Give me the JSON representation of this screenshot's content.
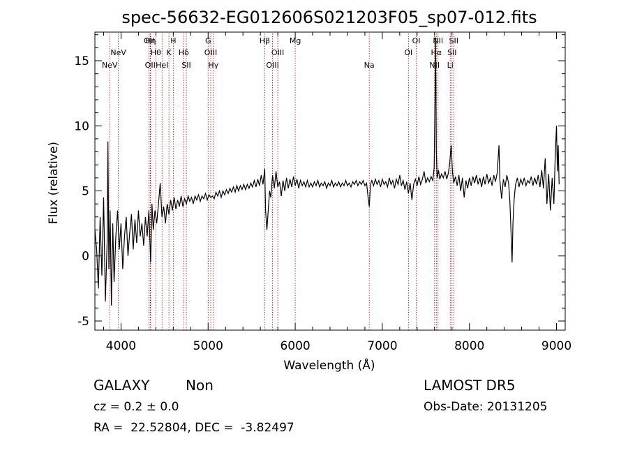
{
  "chart_data": {
    "type": "line",
    "title": "spec-56632-EG012606S021203F05_sp07-012.fits",
    "xlabel": "Wavelength (Å)",
    "ylabel": "Flux (relative)",
    "xlim": [
      3700,
      9100
    ],
    "ylim": [
      -5.7,
      17.2
    ],
    "x_ticks": [
      4000,
      5000,
      6000,
      7000,
      8000,
      9000
    ],
    "y_ticks": [
      -5,
      0,
      5,
      10,
      15
    ],
    "grid": false,
    "legend": "none",
    "line_color": "#000000",
    "marker_color": "#cc0000",
    "lines": [
      {
        "label": "NeV",
        "x": 3870,
        "row": 3
      },
      {
        "label": "NeV",
        "x": 3970,
        "row": 2
      },
      {
        "label": "OII",
        "x": 4322,
        "row": 1
      },
      {
        "label": "Hη",
        "x": 4340,
        "row": 1
      },
      {
        "label": "OII",
        "x": 4335,
        "row": 3
      },
      {
        "label": "Hθ",
        "x": 4400,
        "row": 2
      },
      {
        "label": "HeI",
        "x": 4471,
        "row": 3
      },
      {
        "label": "K",
        "x": 4550,
        "row": 2
      },
      {
        "label": "H",
        "x": 4600,
        "row": 1
      },
      {
        "label": "Hδ",
        "x": 4720,
        "row": 2
      },
      {
        "label": "SII",
        "x": 4750,
        "row": 3
      },
      {
        "label": "G",
        "x": 5000,
        "row": 1
      },
      {
        "label": "OIII",
        "x": 5030,
        "row": 2
      },
      {
        "label": "Hγ",
        "x": 5060,
        "row": 3
      },
      {
        "label": "Hβ",
        "x": 5650,
        "row": 1
      },
      {
        "label": "OIII",
        "x": 5740,
        "row": 3
      },
      {
        "label": "OIII",
        "x": 5800,
        "row": 2
      },
      {
        "label": "Mg",
        "x": 6000,
        "row": 1
      },
      {
        "label": "Na",
        "x": 6850,
        "row": 3
      },
      {
        "label": "OI",
        "x": 7300,
        "row": 2
      },
      {
        "label": "OI",
        "x": 7390,
        "row": 1
      },
      {
        "label": "NII",
        "x": 7600,
        "row": 3
      },
      {
        "label": "Hα",
        "x": 7620,
        "row": 2
      },
      {
        "label": "NII",
        "x": 7640,
        "row": 1
      },
      {
        "label": "Li",
        "x": 7780,
        "row": 3
      },
      {
        "label": "SII",
        "x": 7800,
        "row": 2
      },
      {
        "label": "SII",
        "x": 7820,
        "row": 1
      }
    ],
    "spectrum": [
      [
        3700,
        2.0
      ],
      [
        3720,
        0.5
      ],
      [
        3740,
        -2.5
      ],
      [
        3760,
        3.0
      ],
      [
        3780,
        -1.5
      ],
      [
        3800,
        4.5
      ],
      [
        3820,
        -3.5
      ],
      [
        3840,
        1.0
      ],
      [
        3850,
        8.8
      ],
      [
        3860,
        -1.0
      ],
      [
        3875,
        3.5
      ],
      [
        3890,
        -3.8
      ],
      [
        3905,
        2.5
      ],
      [
        3920,
        -2.0
      ],
      [
        3940,
        1.5
      ],
      [
        3960,
        3.5
      ],
      [
        3980,
        0.5
      ],
      [
        4000,
        2.5
      ],
      [
        4020,
        -1.0
      ],
      [
        4040,
        1.5
      ],
      [
        4060,
        3.0
      ],
      [
        4080,
        0.0
      ],
      [
        4100,
        1.8
      ],
      [
        4120,
        3.2
      ],
      [
        4140,
        0.5
      ],
      [
        4160,
        2.8
      ],
      [
        4180,
        1.0
      ],
      [
        4200,
        3.5
      ],
      [
        4220,
        1.5
      ],
      [
        4240,
        2.5
      ],
      [
        4260,
        0.8
      ],
      [
        4280,
        3.0
      ],
      [
        4300,
        1.5
      ],
      [
        4320,
        3.5
      ],
      [
        4340,
        -0.5
      ],
      [
        4355,
        4.0
      ],
      [
        4370,
        2.0
      ],
      [
        4390,
        3.5
      ],
      [
        4410,
        2.5
      ],
      [
        4430,
        4.0
      ],
      [
        4450,
        5.6
      ],
      [
        4470,
        3.0
      ],
      [
        4490,
        3.8
      ],
      [
        4510,
        2.5
      ],
      [
        4530,
        4.0
      ],
      [
        4550,
        3.2
      ],
      [
        4570,
        4.3
      ],
      [
        4590,
        3.5
      ],
      [
        4610,
        4.5
      ],
      [
        4630,
        3.6
      ],
      [
        4650,
        4.3
      ],
      [
        4670,
        3.8
      ],
      [
        4690,
        4.6
      ],
      [
        4710,
        3.8
      ],
      [
        4730,
        4.4
      ],
      [
        4750,
        4.0
      ],
      [
        4770,
        4.6
      ],
      [
        4790,
        4.2
      ],
      [
        4810,
        4.5
      ],
      [
        4830,
        4.0
      ],
      [
        4850,
        4.6
      ],
      [
        4870,
        4.3
      ],
      [
        4890,
        4.7
      ],
      [
        4910,
        4.2
      ],
      [
        4930,
        4.6
      ],
      [
        4950,
        4.4
      ],
      [
        4970,
        4.8
      ],
      [
        4990,
        4.3
      ],
      [
        5010,
        4.7
      ],
      [
        5030,
        4.5
      ],
      [
        5050,
        4.6
      ],
      [
        5070,
        4.4
      ],
      [
        5090,
        4.9
      ],
      [
        5110,
        4.6
      ],
      [
        5130,
        5.0
      ],
      [
        5150,
        4.5
      ],
      [
        5170,
        5.0
      ],
      [
        5190,
        4.7
      ],
      [
        5210,
        5.1
      ],
      [
        5230,
        4.8
      ],
      [
        5250,
        5.2
      ],
      [
        5270,
        4.9
      ],
      [
        5290,
        5.3
      ],
      [
        5310,
        4.9
      ],
      [
        5330,
        5.4
      ],
      [
        5350,
        5.0
      ],
      [
        5370,
        5.4
      ],
      [
        5390,
        5.1
      ],
      [
        5410,
        5.5
      ],
      [
        5430,
        5.1
      ],
      [
        5450,
        5.5
      ],
      [
        5470,
        5.2
      ],
      [
        5490,
        5.6
      ],
      [
        5510,
        5.3
      ],
      [
        5530,
        5.8
      ],
      [
        5550,
        5.3
      ],
      [
        5570,
        5.9
      ],
      [
        5590,
        5.4
      ],
      [
        5610,
        6.2
      ],
      [
        5630,
        5.5
      ],
      [
        5650,
        6.7
      ],
      [
        5660,
        3.5
      ],
      [
        5675,
        2.0
      ],
      [
        5690,
        3.5
      ],
      [
        5705,
        5.0
      ],
      [
        5720,
        4.5
      ],
      [
        5740,
        6.2
      ],
      [
        5760,
        5.2
      ],
      [
        5780,
        6.5
      ],
      [
        5800,
        5.3
      ],
      [
        5820,
        5.7
      ],
      [
        5840,
        4.6
      ],
      [
        5860,
        5.8
      ],
      [
        5880,
        5.0
      ],
      [
        5900,
        6.0
      ],
      [
        5920,
        5.2
      ],
      [
        5940,
        5.9
      ],
      [
        5960,
        5.3
      ],
      [
        5980,
        6.1
      ],
      [
        6000,
        5.4
      ],
      [
        6020,
        5.9
      ],
      [
        6040,
        5.2
      ],
      [
        6060,
        5.8
      ],
      [
        6080,
        5.4
      ],
      [
        6100,
        5.7
      ],
      [
        6120,
        5.3
      ],
      [
        6140,
        5.8
      ],
      [
        6160,
        5.3
      ],
      [
        6180,
        5.6
      ],
      [
        6200,
        5.3
      ],
      [
        6220,
        5.7
      ],
      [
        6240,
        5.4
      ],
      [
        6260,
        5.8
      ],
      [
        6280,
        5.3
      ],
      [
        6300,
        5.6
      ],
      [
        6320,
        5.4
      ],
      [
        6340,
        5.7
      ],
      [
        6360,
        5.2
      ],
      [
        6380,
        5.6
      ],
      [
        6400,
        5.4
      ],
      [
        6420,
        5.8
      ],
      [
        6440,
        5.3
      ],
      [
        6460,
        5.6
      ],
      [
        6480,
        5.4
      ],
      [
        6500,
        5.7
      ],
      [
        6520,
        5.3
      ],
      [
        6540,
        5.6
      ],
      [
        6560,
        5.4
      ],
      [
        6580,
        5.8
      ],
      [
        6600,
        5.4
      ],
      [
        6620,
        5.6
      ],
      [
        6640,
        5.3
      ],
      [
        6660,
        5.7
      ],
      [
        6680,
        5.5
      ],
      [
        6700,
        5.8
      ],
      [
        6720,
        5.4
      ],
      [
        6740,
        5.7
      ],
      [
        6760,
        5.5
      ],
      [
        6780,
        5.8
      ],
      [
        6800,
        5.4
      ],
      [
        6820,
        5.6
      ],
      [
        6835,
        4.6
      ],
      [
        6850,
        3.8
      ],
      [
        6865,
        5.5
      ],
      [
        6880,
        5.8
      ],
      [
        6900,
        5.4
      ],
      [
        6920,
        5.9
      ],
      [
        6940,
        5.5
      ],
      [
        6960,
        5.8
      ],
      [
        6980,
        5.3
      ],
      [
        7000,
        5.9
      ],
      [
        7020,
        5.5
      ],
      [
        7040,
        5.7
      ],
      [
        7060,
        5.3
      ],
      [
        7080,
        6.0
      ],
      [
        7100,
        5.5
      ],
      [
        7120,
        5.8
      ],
      [
        7140,
        5.2
      ],
      [
        7160,
        5.9
      ],
      [
        7180,
        5.5
      ],
      [
        7200,
        6.2
      ],
      [
        7220,
        5.4
      ],
      [
        7240,
        5.8
      ],
      [
        7260,
        5.1
      ],
      [
        7280,
        5.7
      ],
      [
        7300,
        4.8
      ],
      [
        7320,
        5.6
      ],
      [
        7340,
        4.3
      ],
      [
        7360,
        5.5
      ],
      [
        7380,
        5.9
      ],
      [
        7400,
        5.4
      ],
      [
        7420,
        6.1
      ],
      [
        7440,
        5.5
      ],
      [
        7460,
        5.9
      ],
      [
        7480,
        6.5
      ],
      [
        7500,
        5.6
      ],
      [
        7520,
        6.0
      ],
      [
        7540,
        5.7
      ],
      [
        7560,
        6.1
      ],
      [
        7580,
        5.8
      ],
      [
        7595,
        6.8
      ],
      [
        7605,
        12.0
      ],
      [
        7612,
        16.8
      ],
      [
        7620,
        8.0
      ],
      [
        7630,
        6.0
      ],
      [
        7645,
        6.6
      ],
      [
        7660,
        5.9
      ],
      [
        7680,
        6.3
      ],
      [
        7700,
        6.0
      ],
      [
        7720,
        6.5
      ],
      [
        7740,
        5.9
      ],
      [
        7760,
        6.4
      ],
      [
        7775,
        7.2
      ],
      [
        7790,
        8.5
      ],
      [
        7805,
        6.5
      ],
      [
        7820,
        5.6
      ],
      [
        7840,
        6.1
      ],
      [
        7860,
        5.4
      ],
      [
        7880,
        6.2
      ],
      [
        7900,
        5.0
      ],
      [
        7920,
        6.0
      ],
      [
        7940,
        4.5
      ],
      [
        7960,
        5.8
      ],
      [
        7980,
        5.2
      ],
      [
        8000,
        6.0
      ],
      [
        8020,
        5.4
      ],
      [
        8040,
        6.1
      ],
      [
        8060,
        5.6
      ],
      [
        8080,
        6.2
      ],
      [
        8100,
        5.5
      ],
      [
        8120,
        6.0
      ],
      [
        8140,
        5.3
      ],
      [
        8160,
        6.1
      ],
      [
        8180,
        5.5
      ],
      [
        8200,
        6.3
      ],
      [
        8220,
        5.6
      ],
      [
        8240,
        6.0
      ],
      [
        8260,
        5.4
      ],
      [
        8280,
        6.2
      ],
      [
        8300,
        5.7
      ],
      [
        8320,
        6.4
      ],
      [
        8340,
        8.5
      ],
      [
        8350,
        5.8
      ],
      [
        8370,
        4.4
      ],
      [
        8390,
        5.9
      ],
      [
        8410,
        5.3
      ],
      [
        8430,
        6.2
      ],
      [
        8450,
        5.6
      ],
      [
        8465,
        4.2
      ],
      [
        8480,
        1.5
      ],
      [
        8490,
        -0.5
      ],
      [
        8500,
        2.5
      ],
      [
        8515,
        4.5
      ],
      [
        8530,
        5.5
      ],
      [
        8550,
        6.0
      ],
      [
        8570,
        5.3
      ],
      [
        8590,
        5.9
      ],
      [
        8610,
        5.5
      ],
      [
        8630,
        6.0
      ],
      [
        8650,
        5.4
      ],
      [
        8670,
        5.8
      ],
      [
        8690,
        5.6
      ],
      [
        8710,
        6.1
      ],
      [
        8730,
        5.4
      ],
      [
        8750,
        6.0
      ],
      [
        8770,
        5.5
      ],
      [
        8790,
        6.2
      ],
      [
        8810,
        5.3
      ],
      [
        8830,
        6.6
      ],
      [
        8850,
        5.2
      ],
      [
        8870,
        7.5
      ],
      [
        8890,
        4.0
      ],
      [
        8910,
        6.3
      ],
      [
        8930,
        3.5
      ],
      [
        8950,
        6.0
      ],
      [
        8970,
        4.0
      ],
      [
        8985,
        7.5
      ],
      [
        9000,
        10.0
      ],
      [
        9010,
        6.5
      ],
      [
        9020,
        8.5
      ],
      [
        9030,
        5.5
      ]
    ]
  },
  "info": {
    "object_class": "GALAXY",
    "subclass": "Non",
    "survey": "LAMOST DR5",
    "cz": "cz = 0.2 ± 0.0",
    "obs_date": "Obs-Date: 20131205",
    "coords": "RA =  22.52804, DEC =  -3.82497"
  }
}
